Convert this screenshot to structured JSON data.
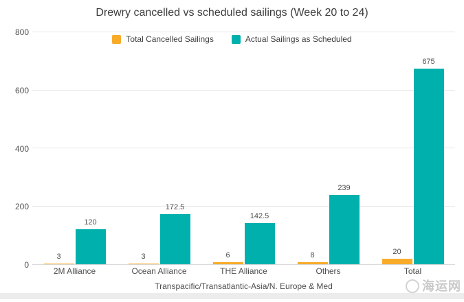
{
  "chart_data": {
    "type": "bar",
    "title": "Drewry cancelled vs scheduled sailings (Week 20 to 24)",
    "categories": [
      "2M Alliance",
      "Ocean Alliance",
      "THE Alliance",
      "Others",
      "Total"
    ],
    "series": [
      {
        "name": "Total Cancelled Sailings",
        "color": "#f8ab29",
        "values": [
          3,
          3,
          6,
          8,
          20
        ]
      },
      {
        "name": "Actual Sailings as Scheduled",
        "color": "#00b0ad",
        "values": [
          120,
          172.5,
          142.5,
          239,
          675
        ]
      }
    ],
    "xlabel": "Transpacific/Transatlantic-Asia/N. Europe & Med",
    "ylabel": "",
    "ylim": [
      0,
      800
    ],
    "yticks": [
      0,
      200,
      400,
      600,
      800
    ],
    "grid": true,
    "legend_position": "top-center",
    "data_labels": true
  },
  "colors": {
    "cancelled": "#f8ab29",
    "scheduled": "#00b0ad",
    "gridline": "#e7e7e7",
    "text": "#4d4d4d"
  },
  "watermark": {
    "text": "海运网"
  }
}
